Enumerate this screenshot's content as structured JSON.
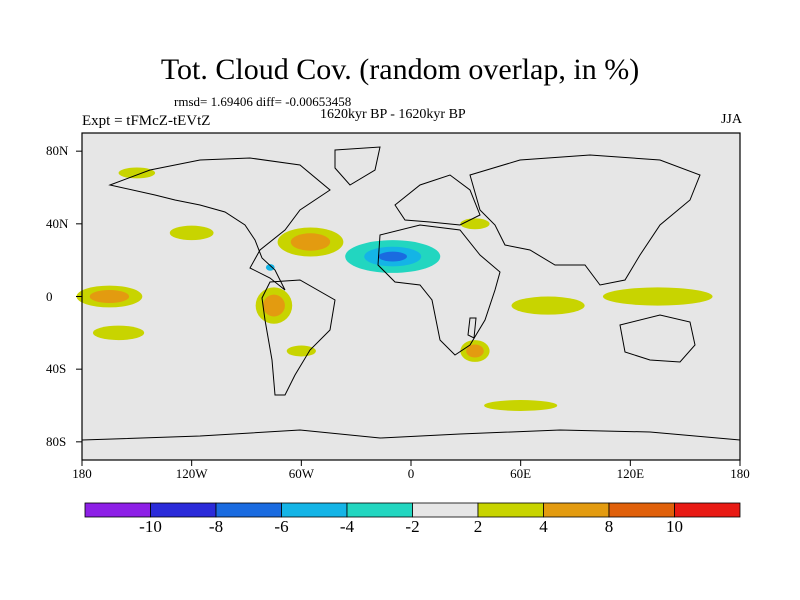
{
  "title": "Tot. Cloud Cov. (random overlap, in %)",
  "stats_line": "rmsd= 1.69406 diff= -0.00653458",
  "left_subtitle": "Expt = tFMcZ-tEVtZ",
  "center_subtitle": "1620kyr BP - 1620kyr BP",
  "right_subtitle": "JJA",
  "map": {
    "projection": "cylindrical equidistant",
    "lon_range": [
      -180,
      180
    ],
    "lat_range": [
      -90,
      90
    ],
    "y_ticks": [
      {
        "lat": 80,
        "label": "80N"
      },
      {
        "lat": 40,
        "label": "40N"
      },
      {
        "lat": 0,
        "label": "0"
      },
      {
        "lat": -40,
        "label": "40S"
      },
      {
        "lat": -80,
        "label": "80S"
      }
    ],
    "x_ticks": [
      {
        "lon": -180,
        "label": "180"
      },
      {
        "lon": -120,
        "label": "120W"
      },
      {
        "lon": -60,
        "label": "60W"
      },
      {
        "lon": 0,
        "label": "0"
      },
      {
        "lon": 60,
        "label": "60E"
      },
      {
        "lon": 120,
        "label": "120E"
      },
      {
        "lon": 180,
        "label": "180"
      }
    ],
    "background_color": "#e6e6e6",
    "anomaly_regions": [
      {
        "lon": -10,
        "lat": 22,
        "rlon": 26,
        "rlat": 9,
        "bin": "-4",
        "nested": [
          "-6",
          "-8"
        ]
      },
      {
        "lon": -55,
        "lat": 30,
        "rlon": 18,
        "rlat": 8,
        "bin": "2",
        "nested": [
          "4"
        ]
      },
      {
        "lon": -30,
        "lat": 10,
        "rlon": 50,
        "rlat": 3,
        "bin": "-2"
      },
      {
        "lon": -77,
        "lat": 16,
        "rlon": 4,
        "rlat": 3,
        "bin": "-2",
        "nested": [
          "-6"
        ]
      },
      {
        "lon": -150,
        "lat": 10,
        "rlon": 28,
        "rlat": 3,
        "bin": "-2"
      },
      {
        "lon": -165,
        "lat": 0,
        "rlon": 18,
        "rlat": 6,
        "bin": "2",
        "nested": [
          "4"
        ]
      },
      {
        "lon": -160,
        "lat": -20,
        "rlon": 14,
        "rlat": 4,
        "bin": "2"
      },
      {
        "lon": -120,
        "lat": 35,
        "rlon": 12,
        "rlat": 4,
        "bin": "2"
      },
      {
        "lon": -165,
        "lat": 35,
        "rlon": 14,
        "rlat": 3,
        "bin": "-2"
      },
      {
        "lon": -75,
        "lat": -5,
        "rlon": 10,
        "rlat": 10,
        "bin": "2",
        "nested": [
          "4"
        ]
      },
      {
        "lon": -45,
        "lat": -20,
        "rlon": 12,
        "rlat": 3,
        "bin": "-2"
      },
      {
        "lon": -60,
        "lat": -30,
        "rlon": 8,
        "rlat": 3,
        "bin": "2"
      },
      {
        "lon": 20,
        "lat": -20,
        "rlon": 12,
        "rlat": 4,
        "bin": "-2"
      },
      {
        "lon": 35,
        "lat": -30,
        "rlon": 8,
        "rlat": 6,
        "bin": "2",
        "nested": [
          "4"
        ]
      },
      {
        "lon": 75,
        "lat": -5,
        "rlon": 20,
        "rlat": 5,
        "bin": "2"
      },
      {
        "lon": 135,
        "lat": 0,
        "rlon": 30,
        "rlat": 5,
        "bin": "2"
      },
      {
        "lon": 70,
        "lat": 10,
        "rlon": 8,
        "rlat": 4,
        "bin": "-2"
      },
      {
        "lon": 110,
        "lat": 25,
        "rlon": 12,
        "rlat": 3,
        "bin": "-2"
      },
      {
        "lon": 140,
        "lat": 25,
        "rlon": 12,
        "rlat": 4,
        "bin": "-2"
      },
      {
        "lon": 15,
        "lat": 38,
        "rlon": 12,
        "rlat": 3,
        "bin": "-2"
      },
      {
        "lon": 35,
        "lat": 40,
        "rlon": 8,
        "rlat": 3,
        "bin": "2"
      },
      {
        "lon": 30,
        "lat": 70,
        "rlon": 12,
        "rlat": 4,
        "bin": "-2"
      },
      {
        "lon": 100,
        "lat": 72,
        "rlon": 12,
        "rlat": 4,
        "bin": "-2"
      },
      {
        "lon": -150,
        "lat": 68,
        "rlon": 10,
        "rlat": 3,
        "bin": "2"
      },
      {
        "lon": -30,
        "lat": 72,
        "rlon": 10,
        "rlat": 3,
        "bin": "-2"
      },
      {
        "lon": -80,
        "lat": -80,
        "rlon": 50,
        "rlat": 5,
        "bin": "-2"
      },
      {
        "lon": 60,
        "lat": -60,
        "rlon": 20,
        "rlat": 3,
        "bin": "2"
      },
      {
        "lon": -140,
        "lat": -55,
        "rlon": 14,
        "rlat": 3,
        "bin": "-2"
      }
    ]
  },
  "colorbar": {
    "bins": [
      {
        "key": "<-10",
        "color": "#8d1fe6"
      },
      {
        "key": "-10",
        "color": "#2b2bd9"
      },
      {
        "key": "-8",
        "color": "#1a6be0"
      },
      {
        "key": "-6",
        "color": "#14b4e6"
      },
      {
        "key": "-4",
        "color": "#22d6c0"
      },
      {
        "key": "-2",
        "color": "#e6e6e6"
      },
      {
        "key": "2",
        "color": "#c8d400"
      },
      {
        "key": "4",
        "color": "#e39b10"
      },
      {
        "key": "8",
        "color": "#e0600a"
      },
      {
        "key": ">10",
        "color": "#e81a14"
      }
    ],
    "labels": [
      "-10",
      "-8",
      "-6",
      "-4",
      "-2",
      "2",
      "4",
      "8",
      "10"
    ]
  }
}
